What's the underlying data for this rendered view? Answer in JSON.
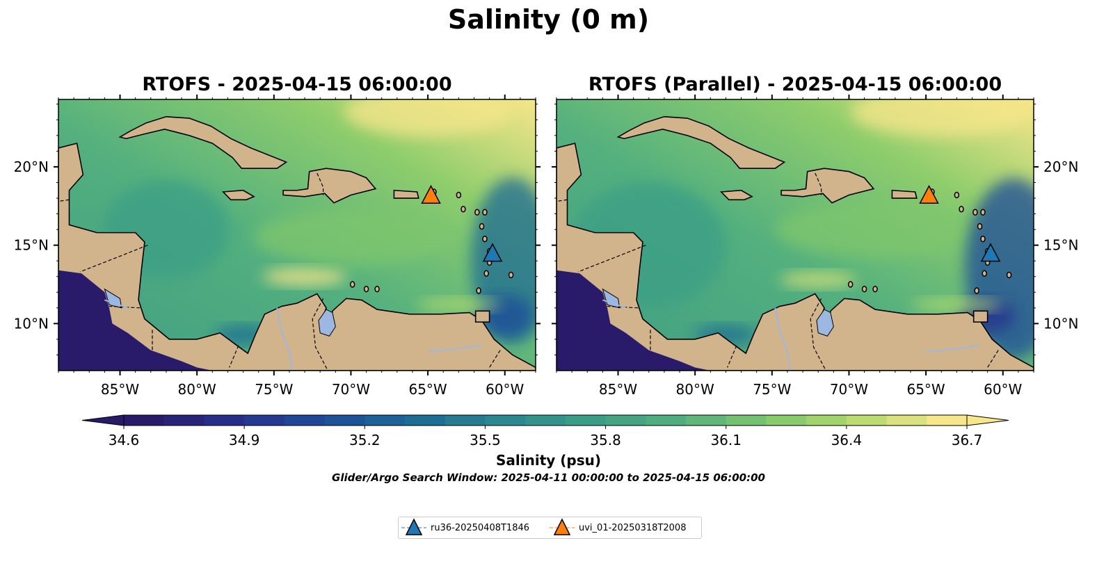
{
  "figure": {
    "title": "Salinity (0 m)",
    "window_note": "Glider/Argo Search Window: 2025-04-11 00:00:00 to 2025-04-15 06:00:00"
  },
  "panels": [
    {
      "title": "RTOFS - 2025-04-15 06:00:00"
    },
    {
      "title": "RTOFS (Parallel) - 2025-04-15 06:00:00"
    }
  ],
  "map": {
    "lon_range": [
      -89,
      -58
    ],
    "lat_range": [
      7,
      24.3
    ],
    "lon_ticks": [
      "85°W",
      "80°W",
      "75°W",
      "70°W",
      "65°W",
      "60°W"
    ],
    "lat_ticks": [
      "20°N",
      "15°N",
      "10°N"
    ],
    "colors": {
      "land": "#d2b48c",
      "lake": "#9db8e0",
      "pacific": "#2a1a6a",
      "sea_mid": "#54b07e",
      "sea_hi": "#f7e68a"
    }
  },
  "colorbar": {
    "label": "Salinity (psu)",
    "ticks": [
      "34.6",
      "34.9",
      "35.2",
      "35.5",
      "35.8",
      "36.1",
      "36.4",
      "36.7"
    ],
    "min": 34.6,
    "max": 36.7,
    "colormap": [
      "#2a1a6a",
      "#27308e",
      "#1e4c9a",
      "#1b6a95",
      "#2a8690",
      "#3b9e86",
      "#54b07e",
      "#7ec66d",
      "#b6db6f",
      "#f7e68a"
    ]
  },
  "markers": [
    {
      "name": "ru36-20250408T1846",
      "lon": -60.8,
      "lat": 14.5,
      "color": "#1f77b4"
    },
    {
      "name": "uvi_01-20250318T2008",
      "lon": -64.8,
      "lat": 18.2,
      "color": "#ff7f0e"
    }
  ]
}
